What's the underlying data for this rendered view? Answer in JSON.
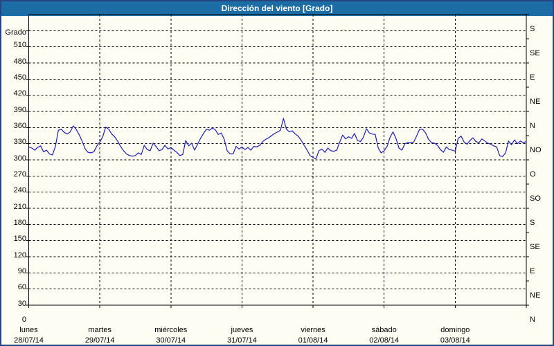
{
  "window": {
    "title": "Dirección del viento [Grado]"
  },
  "colors": {
    "title_bar_bg": "#1C6CA6",
    "title_text": "#FFFFFF",
    "frame_border": "#26457E",
    "page_bg": "#FDFDF4",
    "grid_line": "#000000",
    "axis_line": "#000000",
    "series_line": "#1C1CB4"
  },
  "chart_data": {
    "type": "line",
    "title": "Dirección del viento [Grado]",
    "grid": "dashed",
    "legend": "none",
    "y_axis_left": {
      "title": "Grado",
      "ticks": [
        0,
        30,
        60,
        90,
        120,
        150,
        180,
        210,
        240,
        270,
        300,
        330,
        360,
        390,
        420,
        450,
        480,
        510
      ],
      "min": 0,
      "max": 540
    },
    "y_axis_right": {
      "entries": [
        {
          "label": "S",
          "deg": 540
        },
        {
          "label": "SE",
          "deg": 495
        },
        {
          "label": "E",
          "deg": 450
        },
        {
          "label": "NE",
          "deg": 405
        },
        {
          "label": "N",
          "deg": 360
        },
        {
          "label": "NO",
          "deg": 315
        },
        {
          "label": "O",
          "deg": 270
        },
        {
          "label": "SO",
          "deg": 225
        },
        {
          "label": "S",
          "deg": 180
        },
        {
          "label": "SE",
          "deg": 135
        },
        {
          "label": "E",
          "deg": 90
        },
        {
          "label": "NE",
          "deg": 45
        },
        {
          "label": "N",
          "deg": 0
        }
      ]
    },
    "x_axis": {
      "days": [
        {
          "name": "lunes",
          "date": "28/07/14"
        },
        {
          "name": "martes",
          "date": "29/07/14"
        },
        {
          "name": "miércoles",
          "date": "30/07/14"
        },
        {
          "name": "jueves",
          "date": "31/07/14"
        },
        {
          "name": "viernes",
          "date": "01/08/14"
        },
        {
          "name": "sábado",
          "date": "02/08/14"
        },
        {
          "name": "domingo",
          "date": "03/08/14"
        }
      ],
      "total_hours": 168
    },
    "series": [
      {
        "name": "Dirección del viento",
        "unit": "Grado",
        "sampling": "hourly from lunes 00:00",
        "values": [
          294,
          292,
          288,
          293,
          296,
          285,
          288,
          281,
          279,
          295,
          325,
          327,
          321,
          318,
          322,
          333,
          327,
          317,
          305,
          291,
          284,
          283,
          285,
          296,
          303,
          313,
          331,
          327,
          318,
          313,
          305,
          295,
          287,
          281,
          278,
          277,
          278,
          283,
          280,
          297,
          289,
          287,
          301,
          295,
          287,
          289,
          297,
          290,
          293,
          288,
          284,
          278,
          280,
          306,
          296,
          301,
          288,
          299,
          310,
          319,
          327,
          325,
          329,
          326,
          317,
          320,
          308,
          287,
          281,
          281,
          295,
          290,
          294,
          289,
          293,
          288,
          295,
          294,
          297,
          304,
          308,
          311,
          315,
          319,
          322,
          325,
          347,
          327,
          322,
          324,
          318,
          314,
          306,
          297,
          288,
          278,
          274,
          272,
          287,
          290,
          284,
          292,
          287,
          286,
          288,
          303,
          316,
          309,
          313,
          310,
          319,
          306,
          304,
          312,
          328,
          320,
          318,
          317,
          292,
          283,
          287,
          295,
          312,
          322,
          310,
          292,
          288,
          300,
          302,
          302,
          303,
          315,
          327,
          327,
          320,
          308,
          302,
          301,
          297,
          289,
          284,
          294,
          289,
          288,
          286,
          310,
          314,
          303,
          299,
          306,
          311,
          304,
          302,
          309,
          305,
          301,
          299,
          296,
          294,
          278,
          276,
          283,
          305,
          298,
          307,
          300,
          305,
          302,
          304
        ]
      }
    ]
  }
}
